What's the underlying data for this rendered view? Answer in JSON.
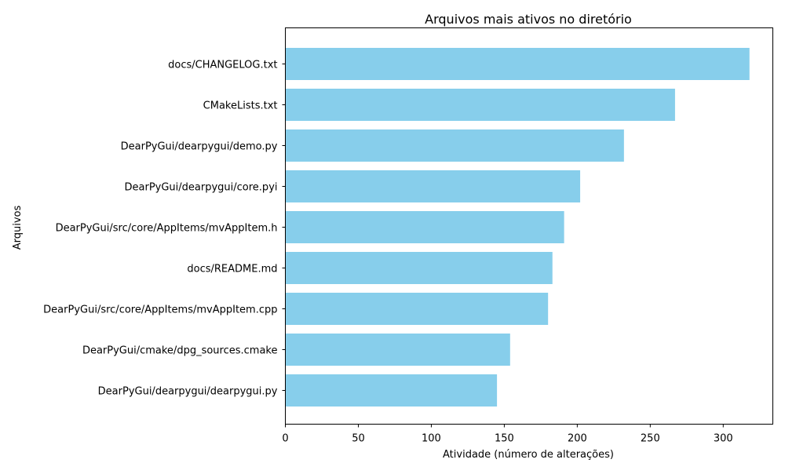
{
  "chart_data": {
    "type": "bar",
    "orientation": "horizontal",
    "title": "Arquivos mais ativos no diretório",
    "xlabel": "Atividade (número de alterações)",
    "ylabel": "Arquivos",
    "categories": [
      "docs/CHANGELOG.txt",
      "CMakeLists.txt",
      "DearPyGui/dearpygui/demo.py",
      "DearPyGui/dearpygui/core.pyi",
      "DearPyGui/src/core/AppItems/mvAppItem.h",
      "docs/README.md",
      "DearPyGui/src/core/AppItems/mvAppItem.cpp",
      "DearPyGui/cmake/dpg_sources.cmake",
      "DearPyGui/dearpygui/dearpygui.py"
    ],
    "values": [
      318,
      267,
      232,
      202,
      191,
      183,
      180,
      154,
      145
    ],
    "xlim": [
      0,
      334
    ],
    "xticks": [
      0,
      50,
      100,
      150,
      200,
      250,
      300
    ],
    "grid": false,
    "bar_color": "#87CEEB"
  }
}
